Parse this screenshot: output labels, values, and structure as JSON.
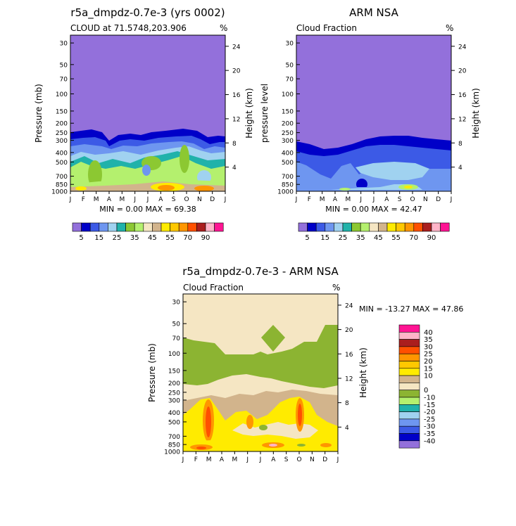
{
  "panel1": {
    "title": "r5a_dmpdz-0.7e-3 (yrs 0002)",
    "subtitle": "CLOUD at 71.5748,203.906",
    "units": "%",
    "ylabel": "Pressure (mb)",
    "y2label": "Height (km)",
    "minmax": "MIN =    0.00 MAX =   69.38"
  },
  "panel2": {
    "title": "ARM NSA",
    "subtitle": "Cloud Fraction",
    "units": "%",
    "ylabel": "pressure level",
    "y2label": "Height (km)",
    "minmax": "MIN =    0.00 MAX =   42.47"
  },
  "panel3": {
    "title": "r5a_dmpdz-0.7e-3 - ARM NSA",
    "subtitle": "Cloud Fraction",
    "units": "%",
    "ylabel": "Pressure (mb)",
    "y2label": "Height (km)",
    "minmax": "MIN = -13.27 MAX =   47.86"
  },
  "chart_data": [
    {
      "type": "heatmap",
      "title": "r5a_dmpdz-0.7e-3 (yrs 0002)",
      "subtitle": "CLOUD at 71.5748,203.906",
      "x": [
        "J",
        "F",
        "M",
        "A",
        "M",
        "J",
        "J",
        "A",
        "S",
        "O",
        "N",
        "D",
        "J"
      ],
      "pressure_ticks": [
        30,
        50,
        70,
        100,
        150,
        200,
        250,
        300,
        400,
        500,
        700,
        850,
        1000
      ],
      "height_ticks": [
        4,
        8,
        12,
        16,
        20,
        24
      ],
      "ylabel": "Pressure (mb)",
      "y2label": "Height (km)",
      "min": 0.0,
      "max": 69.38,
      "colorbar_labels": [
        "5",
        "15",
        "25",
        "35",
        "45",
        "55",
        "70",
        "90"
      ],
      "colors": [
        "#9370db",
        "#0000c8",
        "#3c5ae6",
        "#6e96f0",
        "#a0d2f0",
        "#20b2aa",
        "#8cc832",
        "#b4f06e",
        "#f5e6c3",
        "#d2b48c",
        "#ffeb00",
        "#ffc800",
        "#ff9600",
        "#ff5000",
        "#aa1e1e",
        "#ffb4c8",
        "#ff1493"
      ]
    },
    {
      "type": "heatmap",
      "title": "ARM NSA",
      "subtitle": "Cloud Fraction",
      "x": [
        "J",
        "F",
        "M",
        "A",
        "M",
        "J",
        "J",
        "A",
        "S",
        "O",
        "N",
        "D",
        "J"
      ],
      "pressure_ticks": [
        30,
        50,
        70,
        100,
        150,
        200,
        250,
        300,
        400,
        500,
        700,
        850,
        1000
      ],
      "height_ticks": [
        4,
        8,
        12,
        16,
        20,
        24
      ],
      "ylabel": "pressure level",
      "y2label": "Height (km)",
      "min": 0.0,
      "max": 42.47,
      "colorbar_labels": [
        "5",
        "15",
        "25",
        "35",
        "45",
        "55",
        "70",
        "90"
      ]
    },
    {
      "type": "heatmap",
      "title": "r5a_dmpdz-0.7e-3 - ARM NSA",
      "subtitle": "Cloud Fraction",
      "x": [
        "J",
        "F",
        "M",
        "A",
        "M",
        "J",
        "J",
        "A",
        "S",
        "O",
        "N",
        "D",
        "J"
      ],
      "pressure_ticks": [
        30,
        50,
        70,
        100,
        150,
        200,
        250,
        300,
        400,
        500,
        700,
        850,
        1000
      ],
      "height_ticks": [
        4,
        8,
        12,
        16,
        20,
        24
      ],
      "ylabel": "Pressure (mb)",
      "y2label": "Height (km)",
      "min": -13.27,
      "max": 47.86,
      "colorbar_labels": [
        "40",
        "35",
        "30",
        "25",
        "20",
        "15",
        "10",
        "0",
        "-10",
        "-15",
        "-20",
        "-25",
        "-30",
        "-35",
        "-40"
      ],
      "colors": [
        "#ff1493",
        "#ffb4c8",
        "#aa1e1e",
        "#ff5000",
        "#ff9600",
        "#ffc800",
        "#ffeb00",
        "#d2b48c",
        "#f5e6c3",
        "#8cb432",
        "#b4f06e",
        "#20b2aa",
        "#a0d2f0",
        "#6e96f0",
        "#3c5ae6",
        "#0000c8",
        "#9370db"
      ]
    }
  ]
}
